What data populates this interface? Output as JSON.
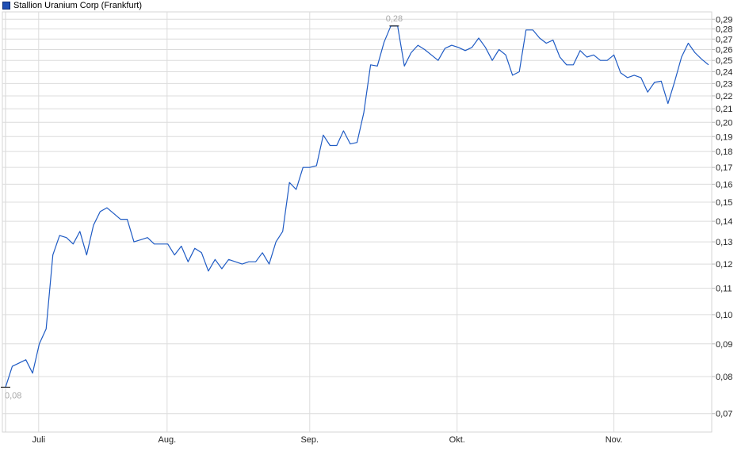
{
  "chart_data": {
    "type": "line",
    "title": "",
    "legend": {
      "position": "top-left",
      "entries": [
        "Stallion Uranium Corp (Frankfurt)"
      ]
    },
    "series": [
      {
        "name": "Stallion Uranium Corp (Frankfurt)",
        "color": "#1f5bc4",
        "values": [
          0.077,
          0.083,
          0.084,
          0.085,
          0.081,
          0.09,
          0.095,
          0.124,
          0.133,
          0.132,
          0.129,
          0.135,
          0.124,
          0.138,
          0.145,
          0.147,
          0.144,
          0.141,
          0.141,
          0.13,
          0.131,
          0.132,
          0.129,
          0.129,
          0.129,
          0.124,
          0.128,
          0.121,
          0.127,
          0.125,
          0.117,
          0.122,
          0.118,
          0.122,
          0.121,
          0.12,
          0.121,
          0.121,
          0.125,
          0.12,
          0.13,
          0.135,
          0.161,
          0.157,
          0.17,
          0.17,
          0.171,
          0.191,
          0.184,
          0.184,
          0.194,
          0.185,
          0.186,
          0.207,
          0.246,
          0.245,
          0.267,
          0.283,
          0.283,
          0.245,
          0.257,
          0.264,
          0.26,
          0.255,
          0.25,
          0.261,
          0.264,
          0.262,
          0.259,
          0.262,
          0.271,
          0.262,
          0.25,
          0.26,
          0.255,
          0.237,
          0.24,
          0.279,
          0.279,
          0.271,
          0.266,
          0.269,
          0.253,
          0.246,
          0.246,
          0.259,
          0.253,
          0.255,
          0.25,
          0.25,
          0.255,
          0.239,
          0.235,
          0.237,
          0.235,
          0.223,
          0.231,
          0.232,
          0.214,
          0.232,
          0.253,
          0.266,
          0.257,
          0.251,
          0.246
        ]
      }
    ],
    "y_scale": "log",
    "ylim": [
      0.066,
      0.297
    ],
    "y_ticks": [
      "0,07",
      "0,08",
      "0,09",
      "0,10",
      "0,11",
      "0,12",
      "0,13",
      "0,14",
      "0,15",
      "0,16",
      "0,17",
      "0,18",
      "0,19",
      "0,20",
      "0,21",
      "0,22",
      "0,23",
      "0,24",
      "0,25",
      "0,26",
      "0,27",
      "0,28",
      "0,29"
    ],
    "y_tick_values": [
      0.07,
      0.08,
      0.09,
      0.1,
      0.11,
      0.12,
      0.13,
      0.14,
      0.15,
      0.16,
      0.17,
      0.18,
      0.19,
      0.2,
      0.21,
      0.22,
      0.23,
      0.24,
      0.25,
      0.26,
      0.27,
      0.28,
      0.29
    ],
    "y_axis_side": "right",
    "x_ticks": [
      "Juli",
      "Aug.",
      "Sep.",
      "Okt.",
      "Nov."
    ],
    "x_tick_index": [
      4.9,
      23.9,
      45,
      66.8,
      90
    ],
    "grid": true,
    "annotations": [
      {
        "label": "0,08",
        "kind": "min",
        "index": 0,
        "value": 0.077
      },
      {
        "label": "0,28",
        "kind": "max",
        "index": 57.5,
        "value": 0.283
      }
    ]
  }
}
